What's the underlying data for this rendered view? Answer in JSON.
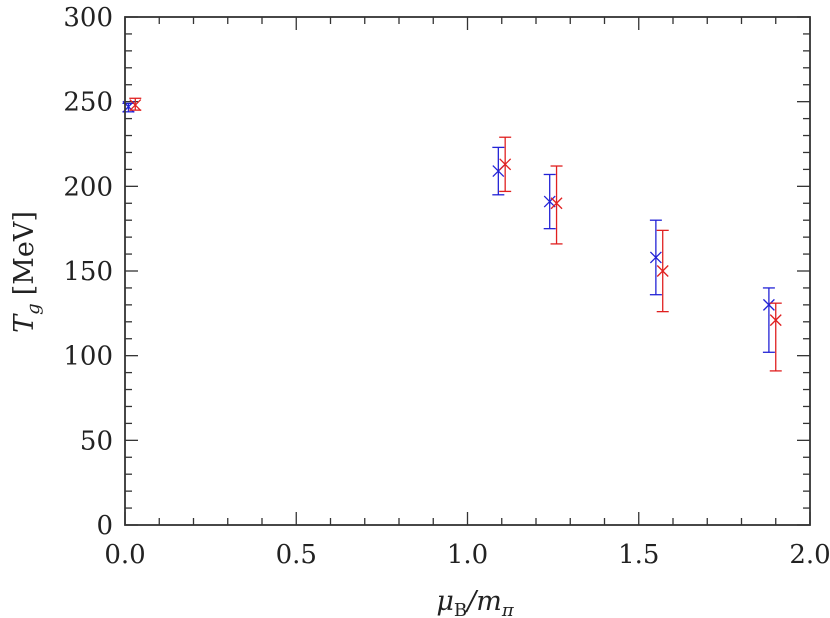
{
  "chart_data": {
    "type": "scatter",
    "title": "",
    "xlabel": {
      "prefix": "μ",
      "sub": "B",
      "mid": "/m",
      "sub2": "π"
    },
    "ylabel": {
      "var": "T",
      "sub": "g",
      "unit": "[MeV]"
    },
    "xlim": [
      0,
      2
    ],
    "ylim": [
      0,
      300
    ],
    "xticks": [
      0,
      0.5,
      1,
      1.5,
      2
    ],
    "xtick_labels": [
      "0.0",
      "0.5",
      "1.0",
      "1.5",
      "2.0"
    ],
    "yticks": [
      0,
      50,
      100,
      150,
      200,
      250,
      300
    ],
    "ytick_labels": [
      "0",
      "50",
      "100",
      "150",
      "200",
      "250",
      "300"
    ],
    "grid": false,
    "legend": "none",
    "series": [
      {
        "color": "#2323d6",
        "marker": "x",
        "points": [
          {
            "x": 0.01,
            "y": 247,
            "err_low": 244,
            "err_high": 249
          },
          {
            "x": 1.09,
            "y": 209,
            "err_low": 195,
            "err_high": 223
          },
          {
            "x": 1.24,
            "y": 191,
            "err_low": 175,
            "err_high": 207
          },
          {
            "x": 1.55,
            "y": 158,
            "err_low": 136,
            "err_high": 180
          },
          {
            "x": 1.88,
            "y": 130,
            "err_low": 102,
            "err_high": 140
          }
        ]
      },
      {
        "color": "#e02020",
        "marker": "x",
        "points": [
          {
            "x": 0.03,
            "y": 248,
            "err_low": 245,
            "err_high": 252
          },
          {
            "x": 1.11,
            "y": 213,
            "err_low": 197,
            "err_high": 229
          },
          {
            "x": 1.26,
            "y": 190,
            "err_low": 166,
            "err_high": 212
          },
          {
            "x": 1.57,
            "y": 150,
            "err_low": 126,
            "err_high": 174
          },
          {
            "x": 1.9,
            "y": 121,
            "err_low": 91,
            "err_high": 131
          }
        ]
      }
    ]
  }
}
